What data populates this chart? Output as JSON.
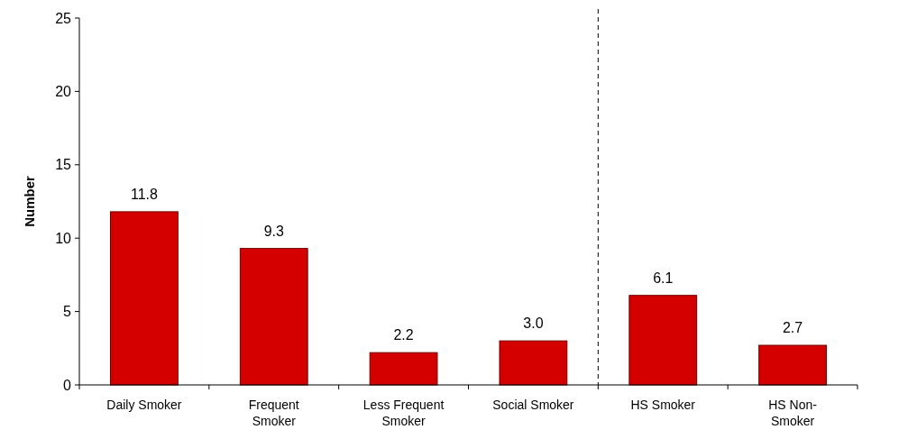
{
  "chart_data": {
    "type": "bar",
    "ylabel": "Number",
    "categories": [
      "Daily Smoker",
      "Frequent Smoker",
      "Less Frequent Smoker",
      "Social Smoker",
      "HS Smoker",
      "HS Non-Smoker"
    ],
    "values": [
      11.8,
      9.3,
      2.2,
      3.0,
      6.1,
      2.7
    ],
    "value_labels": [
      "11.8",
      "9.3",
      "2.2",
      "3.0",
      "6.1",
      "2.7"
    ],
    "color": "#d40000",
    "ylim": [
      0,
      25
    ],
    "yticks": [
      0,
      5,
      10,
      15,
      20,
      25
    ],
    "grid": false
  }
}
